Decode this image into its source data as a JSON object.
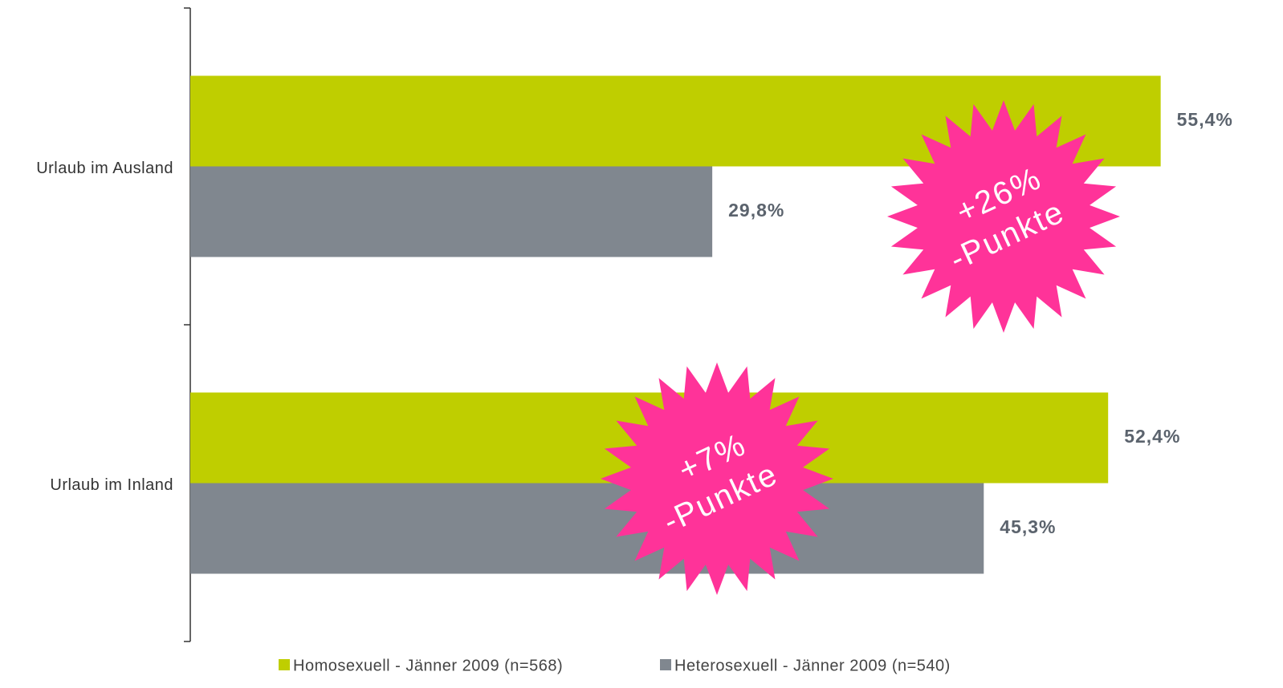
{
  "chart_data": {
    "type": "bar",
    "orientation": "horizontal",
    "categories": [
      "Urlaub im Ausland",
      "Urlaub im Inland"
    ],
    "series": [
      {
        "name": "Homosexuell - Jänner 2009 (n=568)",
        "color": "#bfce00",
        "values": [
          55.4,
          52.4
        ],
        "value_labels": [
          "55,4%",
          "52,4%"
        ]
      },
      {
        "name": "Heterosexuell - Jänner 2009 (n=540)",
        "color": "#80878f",
        "values": [
          29.8,
          45.3
        ],
        "value_labels": [
          "29,8%",
          "45,3%"
        ]
      }
    ],
    "xlim": [
      0,
      60
    ],
    "annotations": [
      {
        "lines": [
          "+26%",
          "-Punkte"
        ],
        "color": "#ff3399"
      },
      {
        "lines": [
          "+7%",
          "-Punkte"
        ],
        "color": "#ff3399"
      }
    ],
    "legend": "bottom"
  }
}
